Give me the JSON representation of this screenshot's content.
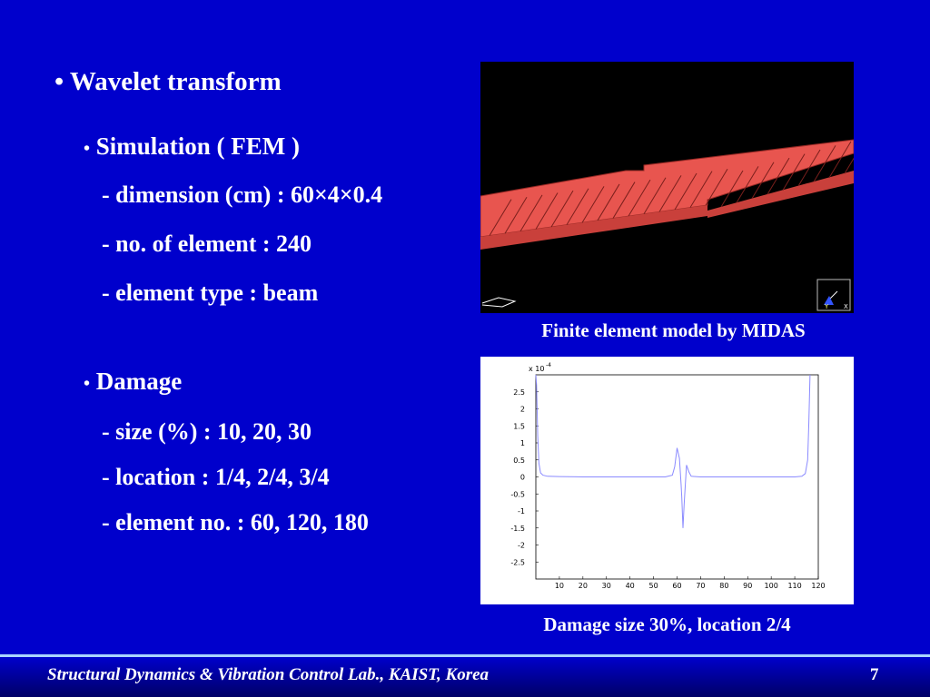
{
  "slide": {
    "title": "Wavelet transform",
    "simulation": {
      "heading": "Simulation ( FEM )",
      "lines": [
        "- dimension (cm) : 60×4×0.4",
        "- no. of element : 240",
        "- element type : beam"
      ]
    },
    "damage": {
      "heading": "Damage",
      "lines": [
        "- size (%) : 10, 20, 30",
        "- location : 1/4, 2/4, 3/4",
        "- element no. : 60, 120, 180"
      ]
    },
    "captions": {
      "fem": "Finite element model by MIDAS",
      "plot": "Damage size 30%, location 2/4"
    },
    "footer": {
      "lab": "Structural Dynamics & Vibration Control Lab., KAIST, Korea",
      "page": "7"
    },
    "colors": {
      "background": "#0000cc",
      "beam": "#e8554f",
      "signal": "#8a8aff"
    },
    "bullet": "•"
  },
  "chart_data": {
    "type": "line",
    "multiplier_label": "x 10",
    "multiplier_exp": "-4",
    "x_ticks": [
      10,
      20,
      30,
      40,
      50,
      60,
      70,
      80,
      90,
      100,
      110,
      120
    ],
    "y_ticks": [
      "2.5",
      "2",
      "1.5",
      "1",
      "0.5",
      "0",
      "-0.5",
      "-1",
      "-1.5",
      "-2",
      "-2.5"
    ],
    "xlim": [
      0,
      120
    ],
    "ylim": [
      -3,
      3
    ],
    "series": [
      {
        "x": [
          0,
          0.3,
          0.8,
          1.3,
          2,
          3,
          5,
          10,
          20,
          40,
          55,
          58,
          59,
          60,
          61,
          61.7,
          62,
          62.5,
          63,
          64,
          65,
          66,
          70,
          90,
          110,
          113,
          114.5,
          115.5,
          116,
          116.5
        ],
        "y": [
          3,
          2.7,
          1.2,
          0.4,
          0.12,
          0.05,
          0.02,
          0.01,
          0.0,
          0.0,
          0.0,
          0.05,
          0.3,
          0.85,
          0.55,
          -0.2,
          -0.6,
          -1.5,
          -0.8,
          0.35,
          0.15,
          0.02,
          0.0,
          0.0,
          0.0,
          0.02,
          0.1,
          0.5,
          1.6,
          3
        ]
      }
    ]
  }
}
